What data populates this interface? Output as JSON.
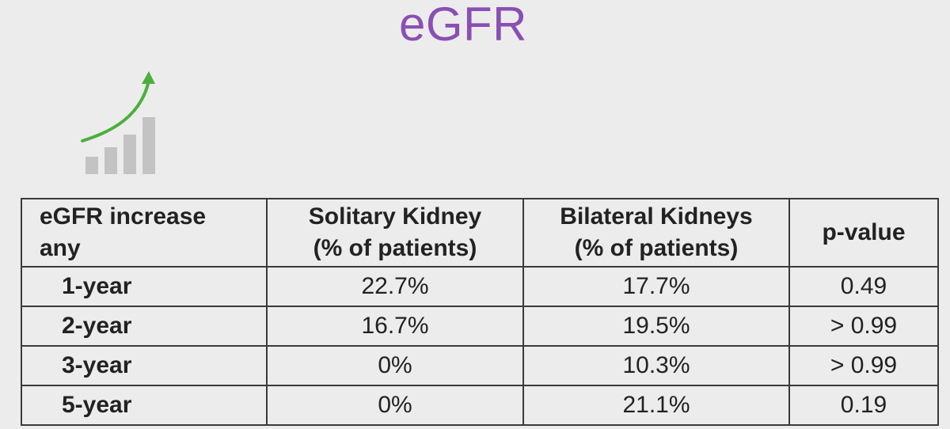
{
  "title": "eGFR",
  "icon": "growth-chart-icon",
  "colors": {
    "title": "#8a4fb3",
    "arrow": "#4caf3d",
    "bars": "#c3c3c3",
    "background": "#ececec"
  },
  "table": {
    "headers": [
      [
        "eGFR increase",
        "any"
      ],
      [
        "Solitary Kidney",
        "(% of patients)"
      ],
      [
        "Bilateral Kidneys",
        "(% of patients)"
      ],
      [
        "p-value"
      ]
    ],
    "rows": [
      {
        "label": "1-year",
        "solitary": "22.7%",
        "bilateral": "17.7%",
        "p": "0.49"
      },
      {
        "label": "2-year",
        "solitary": "16.7%",
        "bilateral": "19.5%",
        "p": "> 0.99"
      },
      {
        "label": "3-year",
        "solitary": "0%",
        "bilateral": "10.3%",
        "p": "> 0.99"
      },
      {
        "label": "5-year",
        "solitary": "0%",
        "bilateral": "21.1%",
        "p": "0.19"
      }
    ]
  }
}
